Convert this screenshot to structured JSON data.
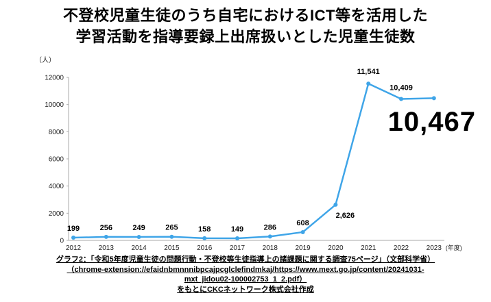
{
  "title": {
    "line1": "不登校児童生徒のうち自宅におけるICT等を活用した",
    "line2": "学習活動を指導要録上出席扱いとした児童生徒数"
  },
  "big_label": {
    "value": "10,467"
  },
  "chart_data": {
    "type": "line",
    "title": "不登校児童生徒のうち自宅におけるICT等を活用した学習活動を指導要録上出席扱いとした児童生徒数",
    "categories": [
      "2012",
      "2013",
      "2014",
      "2015",
      "2016",
      "2017",
      "2018",
      "2019",
      "2020",
      "2021",
      "2022",
      "2023"
    ],
    "values": [
      199,
      256,
      249,
      265,
      158,
      149,
      286,
      608,
      2626,
      11541,
      10409,
      10467
    ],
    "point_labels": [
      "199",
      "256",
      "249",
      "265",
      "158",
      "149",
      "286",
      "608",
      "2,626",
      "11,541",
      "10,409",
      "10,467"
    ],
    "xlabel": "",
    "ylabel": "（人）",
    "x_suffix": "(年度)",
    "ylim": [
      0,
      12000
    ],
    "yticks": [
      0,
      2000,
      4000,
      6000,
      8000,
      10000,
      12000
    ],
    "line_color": "#3fa5e8",
    "grid": false,
    "legend_position": "none"
  },
  "footer": {
    "lines": [
      "グラフ2：「令和5年度児童生徒の問題行動・不登校等生徒指導上の諸課題に関する調査75ページ」（文部科学省）",
      "（chrome-extension://efaidnbmnnnibpcajpcglclefindmkaj/https://www.mext.go.jp/content/20241031-",
      "mxt_jidou02-100002753_1_2.pdf）",
      "をもとにCKCネットワーク株式会社作成"
    ]
  }
}
